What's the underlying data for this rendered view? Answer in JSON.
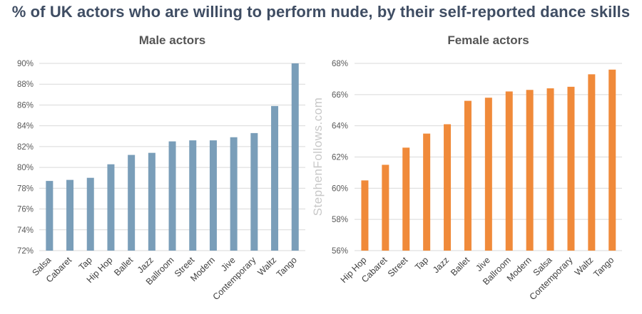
{
  "title": "% of UK actors who are willing to perform nude, by their self-reported dance skills",
  "watermark": "StephenFollows.com",
  "chart_data": [
    {
      "type": "bar",
      "title": "Male actors",
      "categories": [
        "Salsa",
        "Cabaret",
        "Tap",
        "Hip Hop",
        "Ballet",
        "Jazz",
        "Ballroom",
        "Street",
        "Modern",
        "Jive",
        "Contemporary",
        "Waltz",
        "Tango"
      ],
      "values": [
        78.7,
        78.8,
        79.0,
        80.3,
        81.2,
        81.4,
        82.5,
        82.6,
        82.6,
        82.9,
        83.3,
        85.9,
        90.0
      ],
      "ylim": [
        72,
        90
      ],
      "yticks": [
        72,
        74,
        76,
        78,
        80,
        82,
        84,
        86,
        88,
        90
      ],
      "ytick_labels": [
        "72%",
        "74%",
        "76%",
        "78%",
        "80%",
        "82%",
        "84%",
        "86%",
        "88%",
        "90%"
      ],
      "color": "#7a9eb9",
      "grid": true
    },
    {
      "type": "bar",
      "title": "Female actors",
      "categories": [
        "Hip Hop",
        "Cabaret",
        "Street",
        "Tap",
        "Jazz",
        "Ballet",
        "Jive",
        "Ballroom",
        "Modern",
        "Salsa",
        "Contemporary",
        "Waltz",
        "Tango"
      ],
      "values": [
        60.5,
        61.5,
        62.6,
        63.5,
        64.1,
        65.6,
        65.8,
        66.2,
        66.3,
        66.4,
        66.5,
        67.3,
        67.6
      ],
      "ylim": [
        56,
        68
      ],
      "yticks": [
        56,
        58,
        60,
        62,
        64,
        66,
        68
      ],
      "ytick_labels": [
        "56%",
        "58%",
        "60%",
        "62%",
        "64%",
        "66%",
        "68%"
      ],
      "color": "#f08a3a",
      "grid": true
    }
  ]
}
